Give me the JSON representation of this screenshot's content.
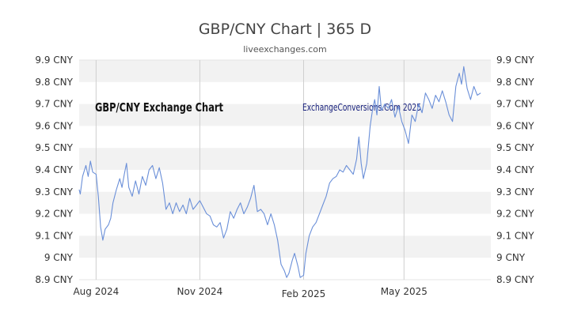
{
  "chart_data": {
    "type": "line",
    "title": "GBP/CNY Chart | 365 D",
    "subtitle": "liveexchanges.com",
    "xlabel": "",
    "ylabel": "",
    "ylim": [
      8.9,
      9.9
    ],
    "yticks": [
      "9.9 CNY",
      "9.8 CNY",
      "9.7 CNY",
      "9.6 CNY",
      "9.5 CNY",
      "9.4 CNY",
      "9.3 CNY",
      "9.2 CNY",
      "9.1 CNY",
      "9 CNY",
      "8.9 CNY"
    ],
    "ytick_values": [
      9.9,
      9.8,
      9.7,
      9.6,
      9.5,
      9.4,
      9.3,
      9.2,
      9.1,
      9.0,
      8.9
    ],
    "xticks": [
      {
        "label": "Aug 2024",
        "date": "2024-08-01"
      },
      {
        "label": "Nov 2024",
        "date": "2024-11-01"
      },
      {
        "label": "Feb 2025",
        "date": "2025-02-01"
      },
      {
        "label": "May 2025",
        "date": "2025-05-01"
      }
    ],
    "xlim": [
      "2024-07-17",
      "2025-07-17"
    ],
    "grid": "alternating horizontal bands, vertical lines at month labels",
    "annotations": [
      "GBP/CNY Exchange Chart",
      "ExchangeConversions.Com 2025"
    ],
    "line_color": "#6a8fd8",
    "series": [
      {
        "values": [
          [
            "2024-07-17",
            9.31
          ],
          [
            "2024-07-18",
            9.29
          ],
          [
            "2024-07-20",
            9.37
          ],
          [
            "2024-07-23",
            9.42
          ],
          [
            "2024-07-25",
            9.37
          ],
          [
            "2024-07-27",
            9.44
          ],
          [
            "2024-07-29",
            9.39
          ],
          [
            "2024-08-01",
            9.38
          ],
          [
            "2024-08-03",
            9.28
          ],
          [
            "2024-08-05",
            9.14
          ],
          [
            "2024-08-07",
            9.08
          ],
          [
            "2024-08-09",
            9.13
          ],
          [
            "2024-08-12",
            9.15
          ],
          [
            "2024-08-14",
            9.18
          ],
          [
            "2024-08-16",
            9.25
          ],
          [
            "2024-08-19",
            9.31
          ],
          [
            "2024-08-22",
            9.36
          ],
          [
            "2024-08-24",
            9.32
          ],
          [
            "2024-08-26",
            9.38
          ],
          [
            "2024-08-28",
            9.43
          ],
          [
            "2024-08-30",
            9.32
          ],
          [
            "2024-09-02",
            9.28
          ],
          [
            "2024-09-05",
            9.35
          ],
          [
            "2024-09-08",
            9.29
          ],
          [
            "2024-09-11",
            9.37
          ],
          [
            "2024-09-14",
            9.33
          ],
          [
            "2024-09-17",
            9.4
          ],
          [
            "2024-09-20",
            9.42
          ],
          [
            "2024-09-23",
            9.36
          ],
          [
            "2024-09-26",
            9.41
          ],
          [
            "2024-09-29",
            9.34
          ],
          [
            "2024-10-02",
            9.22
          ],
          [
            "2024-10-05",
            9.25
          ],
          [
            "2024-10-08",
            9.2
          ],
          [
            "2024-10-11",
            9.25
          ],
          [
            "2024-10-14",
            9.21
          ],
          [
            "2024-10-17",
            9.24
          ],
          [
            "2024-10-20",
            9.2
          ],
          [
            "2024-10-23",
            9.27
          ],
          [
            "2024-10-26",
            9.22
          ],
          [
            "2024-10-29",
            9.24
          ],
          [
            "2024-11-01",
            9.26
          ],
          [
            "2024-11-04",
            9.23
          ],
          [
            "2024-11-07",
            9.2
          ],
          [
            "2024-11-10",
            9.19
          ],
          [
            "2024-11-13",
            9.15
          ],
          [
            "2024-11-16",
            9.14
          ],
          [
            "2024-11-19",
            9.16
          ],
          [
            "2024-11-22",
            9.09
          ],
          [
            "2024-11-25",
            9.13
          ],
          [
            "2024-11-28",
            9.21
          ],
          [
            "2024-12-01",
            9.18
          ],
          [
            "2024-12-04",
            9.22
          ],
          [
            "2024-12-07",
            9.25
          ],
          [
            "2024-12-10",
            9.2
          ],
          [
            "2024-12-13",
            9.23
          ],
          [
            "2024-12-16",
            9.27
          ],
          [
            "2024-12-19",
            9.33
          ],
          [
            "2024-12-22",
            9.21
          ],
          [
            "2024-12-25",
            9.22
          ],
          [
            "2024-12-28",
            9.2
          ],
          [
            "2024-12-31",
            9.15
          ],
          [
            "2025-01-03",
            9.2
          ],
          [
            "2025-01-06",
            9.15
          ],
          [
            "2025-01-09",
            9.08
          ],
          [
            "2025-01-12",
            8.97
          ],
          [
            "2025-01-15",
            8.94
          ],
          [
            "2025-01-17",
            8.91
          ],
          [
            "2025-01-19",
            8.93
          ],
          [
            "2025-01-22",
            8.99
          ],
          [
            "2025-01-24",
            9.02
          ],
          [
            "2025-01-27",
            8.96
          ],
          [
            "2025-01-29",
            8.91
          ],
          [
            "2025-02-01",
            8.92
          ],
          [
            "2025-02-03",
            9.02
          ],
          [
            "2025-02-06",
            9.1
          ],
          [
            "2025-02-09",
            9.14
          ],
          [
            "2025-02-12",
            9.16
          ],
          [
            "2025-02-15",
            9.2
          ],
          [
            "2025-02-18",
            9.24
          ],
          [
            "2025-02-21",
            9.28
          ],
          [
            "2025-02-24",
            9.34
          ],
          [
            "2025-02-27",
            9.36
          ],
          [
            "2025-03-02",
            9.37
          ],
          [
            "2025-03-05",
            9.4
          ],
          [
            "2025-03-08",
            9.39
          ],
          [
            "2025-03-11",
            9.42
          ],
          [
            "2025-03-14",
            9.4
          ],
          [
            "2025-03-17",
            9.38
          ],
          [
            "2025-03-20",
            9.45
          ],
          [
            "2025-03-22",
            9.55
          ],
          [
            "2025-03-24",
            9.43
          ],
          [
            "2025-03-26",
            9.36
          ],
          [
            "2025-03-29",
            9.43
          ],
          [
            "2025-04-01",
            9.6
          ],
          [
            "2025-04-03",
            9.67
          ],
          [
            "2025-04-05",
            9.72
          ],
          [
            "2025-04-07",
            9.65
          ],
          [
            "2025-04-09",
            9.78
          ],
          [
            "2025-04-11",
            9.67
          ],
          [
            "2025-04-14",
            9.7
          ],
          [
            "2025-04-17",
            9.68
          ],
          [
            "2025-04-20",
            9.72
          ],
          [
            "2025-04-23",
            9.64
          ],
          [
            "2025-04-26",
            9.69
          ],
          [
            "2025-04-29",
            9.62
          ],
          [
            "2025-05-02",
            9.58
          ],
          [
            "2025-05-05",
            9.52
          ],
          [
            "2025-05-08",
            9.65
          ],
          [
            "2025-05-11",
            9.62
          ],
          [
            "2025-05-14",
            9.7
          ],
          [
            "2025-05-17",
            9.66
          ],
          [
            "2025-05-20",
            9.75
          ],
          [
            "2025-05-23",
            9.72
          ],
          [
            "2025-05-26",
            9.68
          ],
          [
            "2025-05-29",
            9.74
          ],
          [
            "2025-06-01",
            9.71
          ],
          [
            "2025-06-04",
            9.76
          ],
          [
            "2025-06-07",
            9.71
          ],
          [
            "2025-06-10",
            9.65
          ],
          [
            "2025-06-13",
            9.62
          ],
          [
            "2025-06-16",
            9.78
          ],
          [
            "2025-06-19",
            9.84
          ],
          [
            "2025-06-21",
            9.79
          ],
          [
            "2025-06-23",
            9.87
          ],
          [
            "2025-06-26",
            9.77
          ],
          [
            "2025-06-29",
            9.72
          ],
          [
            "2025-07-02",
            9.78
          ],
          [
            "2025-07-05",
            9.74
          ],
          [
            "2025-07-08",
            9.75
          ]
        ]
      }
    ]
  }
}
